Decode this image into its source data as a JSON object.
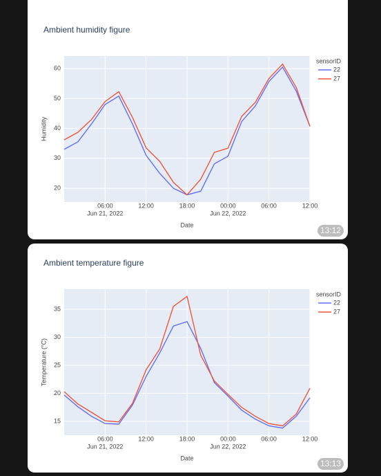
{
  "chart_data": [
    {
      "type": "line",
      "title": "Ambient humidity figure",
      "xlabel": "Date",
      "ylabel": "Humidity",
      "legend_title": "sensorID",
      "legend": "right",
      "grid": true,
      "x": [
        "2022-06-21 00:00",
        "2022-06-21 02:00",
        "2022-06-21 04:00",
        "2022-06-21 06:00",
        "2022-06-21 08:00",
        "2022-06-21 10:00",
        "2022-06-21 12:00",
        "2022-06-21 14:00",
        "2022-06-21 16:00",
        "2022-06-21 18:00",
        "2022-06-21 20:00",
        "2022-06-21 22:00",
        "2022-06-22 00:00",
        "2022-06-22 02:00",
        "2022-06-22 04:00",
        "2022-06-22 06:00",
        "2022-06-22 08:00",
        "2022-06-22 10:00",
        "2022-06-22 12:00"
      ],
      "series": [
        {
          "name": "22",
          "color": "#636efa",
          "values": [
            33,
            35.5,
            41.5,
            48,
            50.8,
            41.5,
            31,
            25,
            20,
            17.8,
            19,
            28.2,
            30.7,
            42.3,
            47.5,
            55.7,
            60.5,
            52.5,
            40.7
          ]
        },
        {
          "name": "27",
          "color": "#ef553b",
          "values": [
            36.2,
            38.7,
            43,
            49,
            52.3,
            43.7,
            33.5,
            29,
            22,
            17.8,
            23,
            32,
            33.4,
            44,
            48.7,
            56.7,
            61.5,
            53.7,
            40.7
          ]
        }
      ],
      "xlim": [
        "2022-06-21 00:00",
        "2022-06-22 12:00"
      ],
      "xticks": [
        {
          "value": "2022-06-21 06:00",
          "label": "06:00",
          "date_label": "Jun 21, 2022"
        },
        {
          "value": "2022-06-21 12:00",
          "label": "12:00"
        },
        {
          "value": "2022-06-21 18:00",
          "label": "18:00"
        },
        {
          "value": "2022-06-22 00:00",
          "label": "00:00",
          "date_label": "Jun 22, 2022"
        },
        {
          "value": "2022-06-22 06:00",
          "label": "06:00"
        },
        {
          "value": "2022-06-22 12:00",
          "label": "12:00"
        }
      ],
      "ylim": [
        15.4,
        64.2
      ],
      "yticks": [
        20,
        30,
        40,
        50,
        60
      ]
    },
    {
      "type": "line",
      "title": "Ambient temperature figure",
      "xlabel": "Date",
      "ylabel": "Temperature (°C)",
      "legend_title": "sensorID",
      "legend": "right",
      "grid": true,
      "x": [
        "2022-06-21 00:00",
        "2022-06-21 02:00",
        "2022-06-21 04:00",
        "2022-06-21 06:00",
        "2022-06-21 08:00",
        "2022-06-21 10:00",
        "2022-06-21 12:00",
        "2022-06-21 14:00",
        "2022-06-21 16:00",
        "2022-06-21 18:00",
        "2022-06-21 20:00",
        "2022-06-21 22:00",
        "2022-06-22 00:00",
        "2022-06-22 02:00",
        "2022-06-22 04:00",
        "2022-06-22 06:00",
        "2022-06-22 08:00",
        "2022-06-22 10:00",
        "2022-06-22 12:00"
      ],
      "series": [
        {
          "name": "22",
          "color": "#636efa",
          "values": [
            19.7,
            17.6,
            15.9,
            14.6,
            14.5,
            17.9,
            23,
            27.2,
            32,
            32.8,
            28,
            21.9,
            19.5,
            17,
            15.4,
            14.2,
            13.8,
            15.9,
            19.2
          ]
        },
        {
          "name": "27",
          "color": "#ef553b",
          "values": [
            20.3,
            18.1,
            16.6,
            15.1,
            14.9,
            18.2,
            24.2,
            27.9,
            35.5,
            37.3,
            26.8,
            22.2,
            19.8,
            17.5,
            15.9,
            14.6,
            14.2,
            16.3,
            20.9
          ]
        }
      ],
      "xlim": [
        "2022-06-21 00:00",
        "2022-06-22 12:00"
      ],
      "xticks": [
        {
          "value": "2022-06-21 06:00",
          "label": "06:00",
          "date_label": "Jun 21, 2022"
        },
        {
          "value": "2022-06-21 12:00",
          "label": "12:00"
        },
        {
          "value": "2022-06-21 18:00",
          "label": "18:00"
        },
        {
          "value": "2022-06-22 00:00",
          "label": "00:00",
          "date_label": "Jun 22, 2022"
        },
        {
          "value": "2022-06-22 06:00",
          "label": "06:00"
        },
        {
          "value": "2022-06-22 12:00",
          "label": "12:00"
        }
      ],
      "ylim": [
        12.53,
        38.58
      ],
      "yticks": [
        15,
        20,
        25,
        30,
        35
      ]
    }
  ],
  "messages": [
    {
      "time": "13:12"
    },
    {
      "time": "13:13"
    }
  ]
}
